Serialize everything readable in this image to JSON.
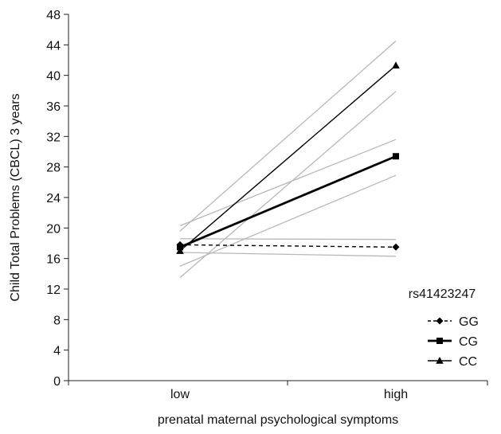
{
  "chart_data": {
    "type": "line",
    "ylabel": "Child Total Problems (CBCL) 3 years",
    "xlabel": "prenatal maternal psychological symptoms",
    "categories": [
      "low",
      "high"
    ],
    "ylim": [
      0,
      48
    ],
    "yticks": [
      0,
      4,
      8,
      12,
      16,
      20,
      24,
      28,
      32,
      36,
      40,
      44,
      48
    ],
    "grid": false,
    "legend": {
      "title": "rs41423247",
      "position": "right",
      "entries": [
        "GG",
        "CG",
        "CC"
      ]
    },
    "series": [
      {
        "name": "GG",
        "values": [
          17.8,
          17.5
        ],
        "style": "dashed",
        "marker": "diamond",
        "color": "#000000"
      },
      {
        "name": "CG",
        "values": [
          17.5,
          29.4
        ],
        "style": "bold",
        "marker": "square",
        "color": "#000000"
      },
      {
        "name": "CC",
        "values": [
          17.0,
          41.3
        ],
        "style": "solid",
        "marker": "triangle",
        "color": "#000000"
      }
    ],
    "confidence_bounds": {
      "color": "#b8b8b8",
      "lines": [
        {
          "values": [
            18.6,
            18.5
          ]
        },
        {
          "values": [
            16.8,
            16.3
          ]
        },
        {
          "values": [
            20.3,
            31.6
          ]
        },
        {
          "values": [
            15.0,
            26.9
          ]
        },
        {
          "values": [
            19.6,
            44.5
          ]
        },
        {
          "values": [
            13.5,
            37.9
          ]
        }
      ]
    }
  }
}
